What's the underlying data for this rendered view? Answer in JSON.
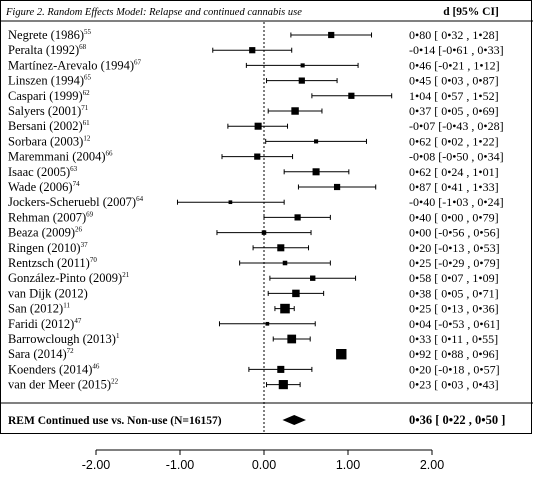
{
  "chart_data": {
    "type": "forest",
    "title": "Figure 2. Random Effects Model: Relapse and continued cannabis use",
    "effect_header": "d [95% CI]",
    "xlim": [
      -2.0,
      2.0
    ],
    "xticks": [
      "-2.00",
      "-1.00",
      "0.00",
      "1.00",
      "2.00"
    ],
    "tick_values": [
      -2,
      -1,
      0,
      1,
      2
    ],
    "null_value": 0,
    "studies": [
      {
        "name": "Negrete (1986)",
        "ref": "55",
        "d": 0.8,
        "lo": 0.32,
        "hi": 1.28,
        "weight": 1.0,
        "ci_label": "0•80 [ 0•32 , 1•28]"
      },
      {
        "name": "Peralta (1992)",
        "ref": "68",
        "d": -0.14,
        "lo": -0.61,
        "hi": 0.33,
        "weight": 1.0,
        "ci_label": "-0•14 [-0•61 , 0•33]"
      },
      {
        "name": "Martínez-Arevalo (1994)",
        "ref": "67",
        "d": 0.46,
        "lo": -0.21,
        "hi": 1.12,
        "weight": 0.5,
        "ci_label": "0•46 [-0•21 , 1•12]"
      },
      {
        "name": "Linszen (1994)",
        "ref": "65",
        "d": 0.45,
        "lo": 0.03,
        "hi": 0.87,
        "weight": 1.0,
        "ci_label": "0•45 [ 0•03 , 0•87]"
      },
      {
        "name": "Caspari (1999)",
        "ref": "62",
        "d": 1.04,
        "lo": 0.57,
        "hi": 1.52,
        "weight": 1.0,
        "ci_label": "1•04 [ 0•57 , 1•52]"
      },
      {
        "name": "Salyers (2001)",
        "ref": "71",
        "d": 0.37,
        "lo": 0.05,
        "hi": 0.69,
        "weight": 1.3,
        "ci_label": "0•37 [ 0•05 , 0•69]"
      },
      {
        "name": "Bersani (2002)",
        "ref": "61",
        "d": -0.07,
        "lo": -0.43,
        "hi": 0.28,
        "weight": 1.2,
        "ci_label": "-0•07 [-0•43 , 0•28]"
      },
      {
        "name": "Sorbara (2003)",
        "ref": "12",
        "d": 0.62,
        "lo": 0.02,
        "hi": 1.22,
        "weight": 0.5,
        "ci_label": "0•62 [ 0•02 , 1•22]"
      },
      {
        "name": "Maremmani (2004)",
        "ref": "66",
        "d": -0.08,
        "lo": -0.5,
        "hi": 0.34,
        "weight": 1.0,
        "ci_label": "-0•08 [-0•50 , 0•34]"
      },
      {
        "name": "Isaac (2005)",
        "ref": "63",
        "d": 0.62,
        "lo": 0.24,
        "hi": 1.01,
        "weight": 1.2,
        "ci_label": "0•62 [ 0•24 , 1•01]"
      },
      {
        "name": "Wade (2006)",
        "ref": "74",
        "d": 0.87,
        "lo": 0.41,
        "hi": 1.33,
        "weight": 1.0,
        "ci_label": "0•87 [ 0•41 , 1•33]"
      },
      {
        "name": "Jockers-Scheruebl (2007)",
        "ref": "64",
        "d": -0.4,
        "lo": -1.03,
        "hi": 0.24,
        "weight": 0.4,
        "ci_label": "-0•40 [-1•03 , 0•24]"
      },
      {
        "name": "Rehman (2007)",
        "ref": "69",
        "d": 0.4,
        "lo": 0.0,
        "hi": 0.79,
        "weight": 1.0,
        "ci_label": "0•40 [ 0•00 , 0•79]"
      },
      {
        "name": "Beaza (2009)",
        "ref": "26",
        "d": 0.0,
        "lo": -0.56,
        "hi": 0.56,
        "weight": 0.6,
        "ci_label": "0•00 [-0•56 , 0•56]"
      },
      {
        "name": "Ringen (2010)",
        "ref": "37",
        "d": 0.2,
        "lo": -0.13,
        "hi": 0.53,
        "weight": 1.2,
        "ci_label": "0•20 [-0•13 , 0•53]"
      },
      {
        "name": "Rentzsch (2011)",
        "ref": "70",
        "d": 0.25,
        "lo": -0.29,
        "hi": 0.79,
        "weight": 0.6,
        "ci_label": "0•25 [-0•29 , 0•79]"
      },
      {
        "name": "González-Pinto (2009)",
        "ref": "21",
        "d": 0.58,
        "lo": 0.07,
        "hi": 1.09,
        "weight": 0.8,
        "ci_label": "0•58 [ 0•07 , 1•09]"
      },
      {
        "name": "van Dijk (2012)",
        "ref": "",
        "d": 0.38,
        "lo": 0.05,
        "hi": 0.71,
        "weight": 1.3,
        "ci_label": "0•38 [ 0•05 , 0•71]"
      },
      {
        "name": "San (2012)",
        "ref": "11",
        "d": 0.25,
        "lo": 0.13,
        "hi": 0.36,
        "weight": 1.8,
        "ci_label": "0•25 [ 0•13 , 0•36]"
      },
      {
        "name": "Faridi (2012)",
        "ref": "47",
        "d": 0.04,
        "lo": -0.53,
        "hi": 0.61,
        "weight": 0.4,
        "ci_label": "0•04 [-0•53 , 0•61]"
      },
      {
        "name": "Barrowclough (2013)",
        "ref": "1",
        "d": 0.33,
        "lo": 0.11,
        "hi": 0.55,
        "weight": 1.6,
        "ci_label": "0•33 [ 0•11 , 0•55]"
      },
      {
        "name": "Sara (2014)",
        "ref": "72",
        "d": 0.92,
        "lo": 0.88,
        "hi": 0.96,
        "weight": 2.0,
        "ci_label": "0•92 [ 0•88 , 0•96]"
      },
      {
        "name": "Koenders (2014)",
        "ref": "46",
        "d": 0.2,
        "lo": -0.18,
        "hi": 0.57,
        "weight": 1.2,
        "ci_label": "0•20 [-0•18 , 0•57]"
      },
      {
        "name": "van der Meer (2015)",
        "ref": "22",
        "d": 0.23,
        "lo": 0.03,
        "hi": 0.43,
        "weight": 1.7,
        "ci_label": "0•23 [ 0•03 , 0•43]"
      }
    ],
    "summary": {
      "label": "REM Continued use vs. Non-use (N=16157)",
      "d": 0.36,
      "lo": 0.22,
      "hi": 0.5,
      "ci_label": "0•36 [ 0•22 , 0•50 ]"
    }
  }
}
